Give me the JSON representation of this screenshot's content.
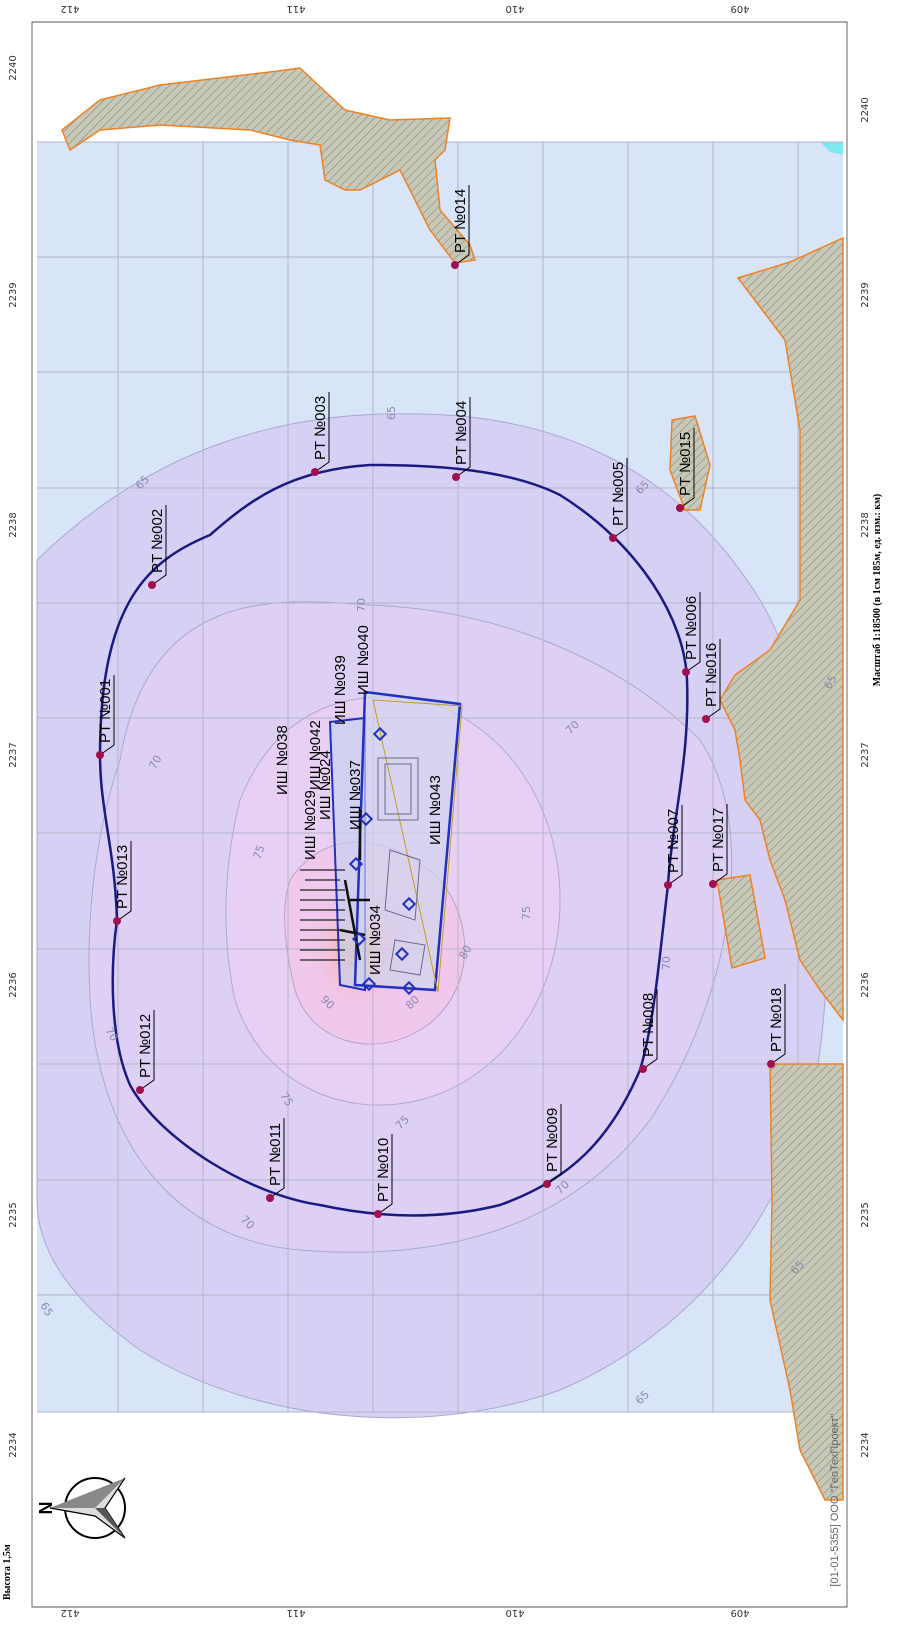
{
  "scale_note": "Масштаб 1:18500 (в 1см 185м, ед. изм.: км)",
  "copyright": "[01-01-5355] ООО \"ГеоТехПроект\"",
  "height_label": "Высота 1,5м",
  "north_label": "N",
  "y_axis_ticks": [
    "412",
    "411",
    "410",
    "409"
  ],
  "x_axis_ticks": [
    "2234",
    "2235",
    "2236",
    "2237",
    "2238",
    "2239",
    "2240"
  ],
  "isoline_labels": [
    "65",
    "70",
    "75",
    "80",
    "90"
  ],
  "points_rt": [
    {
      "id": "PT №001"
    },
    {
      "id": "PT №002"
    },
    {
      "id": "PT №003"
    },
    {
      "id": "PT №004"
    },
    {
      "id": "PT №005"
    },
    {
      "id": "PT №006"
    },
    {
      "id": "PT №007"
    },
    {
      "id": "PT №008"
    },
    {
      "id": "PT №009"
    },
    {
      "id": "PT №010"
    },
    {
      "id": "PT №011"
    },
    {
      "id": "PT №012"
    },
    {
      "id": "PT №013"
    },
    {
      "id": "PT №014"
    },
    {
      "id": "PT №015"
    },
    {
      "id": "PT №016"
    },
    {
      "id": "PT №017"
    },
    {
      "id": "PT №018"
    }
  ],
  "sources_ish": [
    "ИШ №038",
    "ИШ №042",
    "ИШ №039",
    "ИШ №037",
    "ИШ №043",
    "ИШ №034",
    "ИШ №029",
    "ИШ №024",
    "ИШ №040"
  ],
  "colors": {
    "contour_main": "#1a1a80",
    "point": "#a01050",
    "zone_outline": "#f08020",
    "background_fill": "#d8e4f8",
    "source_outline": "#2030c0"
  }
}
